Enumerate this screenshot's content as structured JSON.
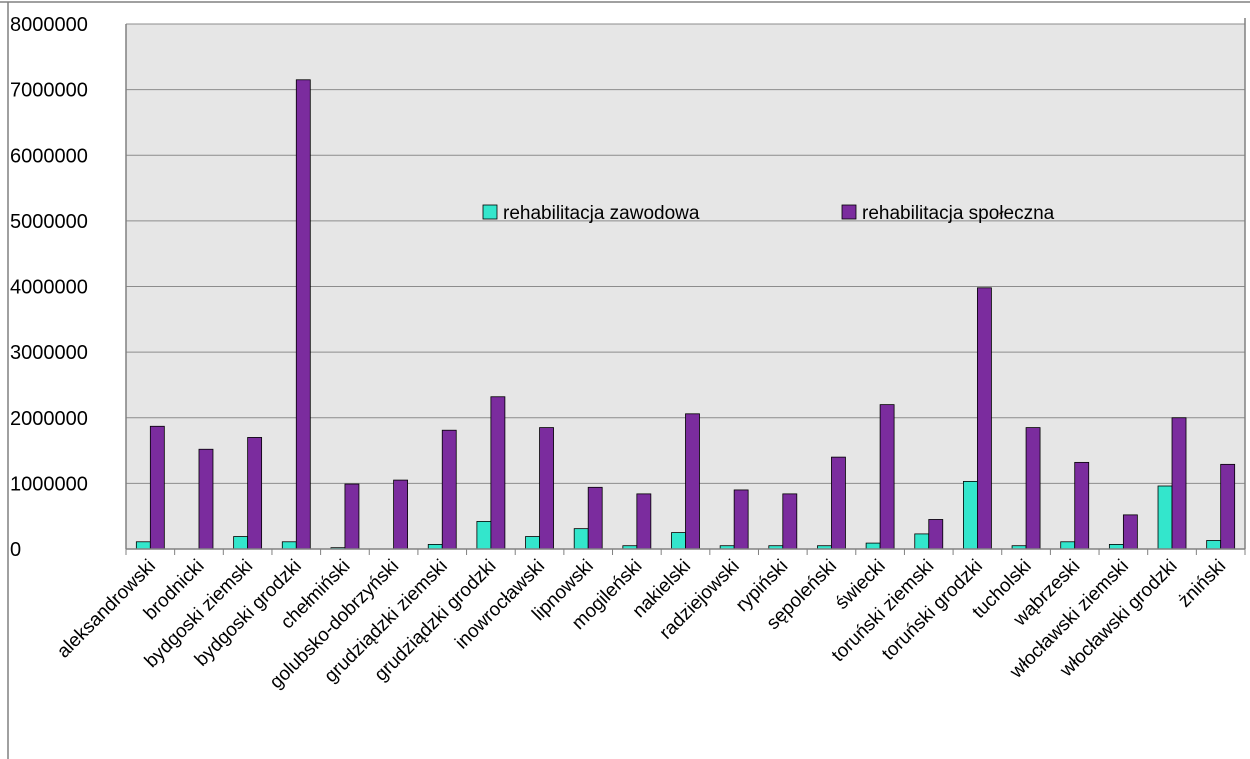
{
  "chart_data": {
    "type": "bar",
    "title": "",
    "xlabel": "",
    "ylabel": "",
    "ylim": [
      0,
      8000000
    ],
    "yticks": [
      "0",
      "1000000",
      "2000000",
      "3000000",
      "4000000",
      "5000000",
      "6000000",
      "7000000",
      "8000000"
    ],
    "grid": true,
    "legend_position": "center",
    "categories": [
      "aleksandrowski",
      "brodnicki",
      "bydgoski ziemski",
      "bydgoski grodzki",
      "chełmiński",
      "golubsko-dobrzyński",
      "grudziądzki ziemski",
      "grudziądzki grodzki",
      "inowrocławski",
      "lipnowski",
      "mogileński",
      "nakielski",
      "radziejowski",
      "rypiński",
      "sępoleński",
      "świecki",
      "toruński ziemski",
      "toruński grodzki",
      "tucholski",
      "wąbrzeski",
      "włocławski ziemski",
      "włocławski grodzki",
      "żniński"
    ],
    "series": [
      {
        "name": "rehabilitacja zawodowa",
        "color": "#33e6cc",
        "values": [
          110000,
          0,
          190000,
          110000,
          20000,
          0,
          70000,
          420000,
          190000,
          310000,
          50000,
          250000,
          50000,
          50000,
          50000,
          90000,
          230000,
          1030000,
          50000,
          110000,
          70000,
          960000,
          130000
        ]
      },
      {
        "name": "rehabilitacja społeczna",
        "color": "#7b2c9e",
        "values": [
          1870000,
          1520000,
          1700000,
          7150000,
          990000,
          1050000,
          1810000,
          2320000,
          1850000,
          940000,
          840000,
          2060000,
          900000,
          840000,
          1400000,
          2200000,
          450000,
          3980000,
          1850000,
          1320000,
          520000,
          2000000,
          1290000
        ]
      }
    ]
  }
}
